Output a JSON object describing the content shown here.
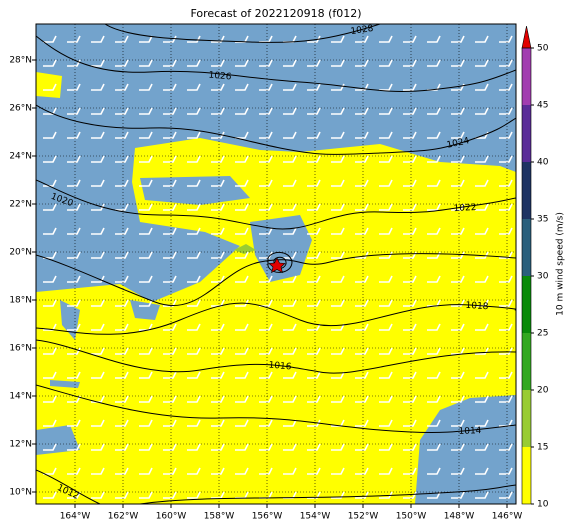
{
  "title": "Forecast of 2022120918 (f012)",
  "map": {
    "lon_range": [
      -165.625,
      -145.625
    ],
    "lat_range": [
      9.5,
      29.5
    ],
    "lon_ticks": [
      {
        "value": -164,
        "label": "164°W"
      },
      {
        "value": -162,
        "label": "162°W"
      },
      {
        "value": -160,
        "label": "160°W"
      },
      {
        "value": -158,
        "label": "158°W"
      },
      {
        "value": -156,
        "label": "156°W"
      },
      {
        "value": -154,
        "label": "154°W"
      },
      {
        "value": -152,
        "label": "152°W"
      },
      {
        "value": -150,
        "label": "150°W"
      },
      {
        "value": -148,
        "label": "148°W"
      },
      {
        "value": -146,
        "label": "146°W"
      }
    ],
    "lat_ticks": [
      {
        "value": 10,
        "label": "10°N"
      },
      {
        "value": 12,
        "label": "12°N"
      },
      {
        "value": 14,
        "label": "14°N"
      },
      {
        "value": 16,
        "label": "16°N"
      },
      {
        "value": 18,
        "label": "18°N"
      },
      {
        "value": 20,
        "label": "20°N"
      },
      {
        "value": 22,
        "label": "22°N"
      },
      {
        "value": 24,
        "label": "24°N"
      },
      {
        "value": 26,
        "label": "26°N"
      },
      {
        "value": 28,
        "label": "28°N"
      }
    ],
    "contour_labels": [
      1028,
      1026,
      1024,
      1022,
      1020,
      1018,
      1016,
      1014,
      1012
    ]
  },
  "colorbar": {
    "label": "10 m wind speed (m/s)",
    "range": [
      10,
      50
    ],
    "ticks": [
      10,
      15,
      20,
      25,
      30,
      35,
      40,
      45,
      50
    ],
    "colors": [
      "#ffff00",
      "#99cc33",
      "#33a820",
      "#0a8a0a",
      "#2a5f7c",
      "#1e3363",
      "#5a2c98",
      "#a23db0"
    ],
    "extend_color": "#e00000"
  }
}
